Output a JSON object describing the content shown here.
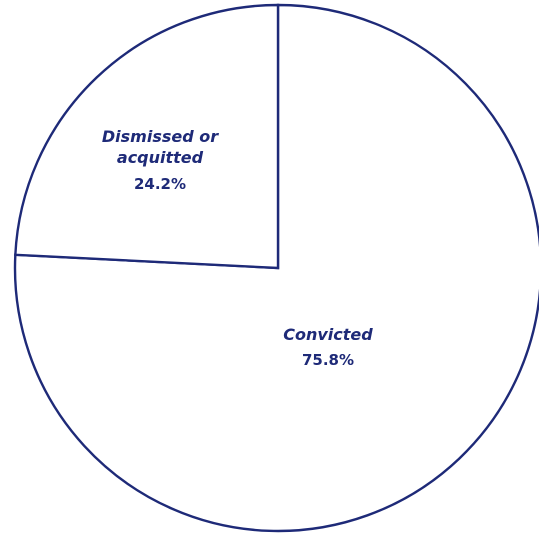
{
  "chart_data": {
    "type": "pie",
    "slices": [
      {
        "label_lines": [
          "Convicted"
        ],
        "value_label": "75.8%",
        "value": 75.8
      },
      {
        "label_lines": [
          "Dismissed or",
          "acquitted"
        ],
        "value_label": "24.2%",
        "value": 24.2
      }
    ],
    "start_angle_deg": 0,
    "direction": "clockwise",
    "legend": "none",
    "colors": {
      "fill": "#ffffff",
      "stroke": "#1e2a78",
      "text": "#1e2a78"
    }
  }
}
